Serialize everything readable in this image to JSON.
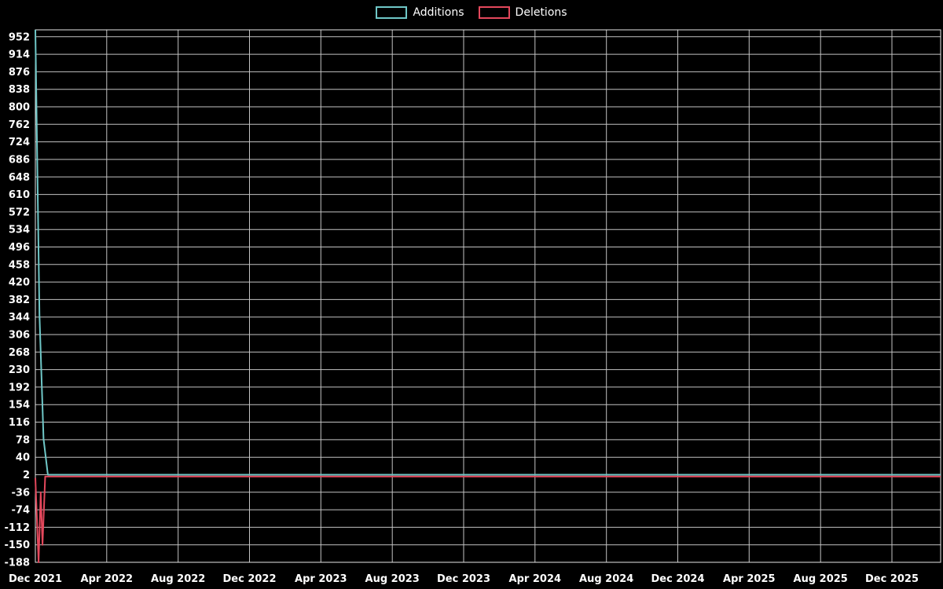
{
  "chart_data": {
    "type": "line",
    "title": "",
    "xlabel": "",
    "ylabel": "",
    "x_unit": "months since Dec 2021 (weekly data)",
    "x_tick_labels": [
      "Dec 2021",
      "Apr 2022",
      "Aug 2022",
      "Dec 2022",
      "Apr 2023",
      "Aug 2023",
      "Dec 2023",
      "Apr 2024",
      "Aug 2024",
      "Dec 2024",
      "Apr 2025",
      "Aug 2025",
      "Dec 2025"
    ],
    "x_tick_positions": [
      0,
      4,
      8,
      12,
      16,
      20,
      24,
      28,
      32,
      36,
      40,
      44,
      48
    ],
    "y_ticks": [
      952,
      914,
      876,
      838,
      800,
      762,
      724,
      686,
      648,
      610,
      572,
      534,
      496,
      458,
      420,
      382,
      344,
      306,
      268,
      230,
      192,
      154,
      116,
      78,
      40,
      2,
      -36,
      -74,
      -112,
      -150,
      -188
    ],
    "ylim": [
      -188,
      967
    ],
    "xlim": [
      0,
      50.73
    ],
    "grid": true,
    "background_color": "#000000",
    "grid_color": "#e6e6e6",
    "text_color": "#ffffff",
    "legend_position": "top-center",
    "series": [
      {
        "name": "Additions",
        "color": "#6fc7c7",
        "points": [
          [
            0,
            967
          ],
          [
            0.23,
            350
          ],
          [
            0.46,
            80
          ],
          [
            0.7,
            2
          ],
          [
            50.73,
            2
          ]
        ]
      },
      {
        "name": "Deletions",
        "color": "#e4485c",
        "points": [
          [
            0,
            -5
          ],
          [
            0.18,
            -188
          ],
          [
            0.3,
            -36
          ],
          [
            0.4,
            -150
          ],
          [
            0.55,
            -2
          ],
          [
            50.73,
            -2
          ]
        ]
      }
    ]
  }
}
